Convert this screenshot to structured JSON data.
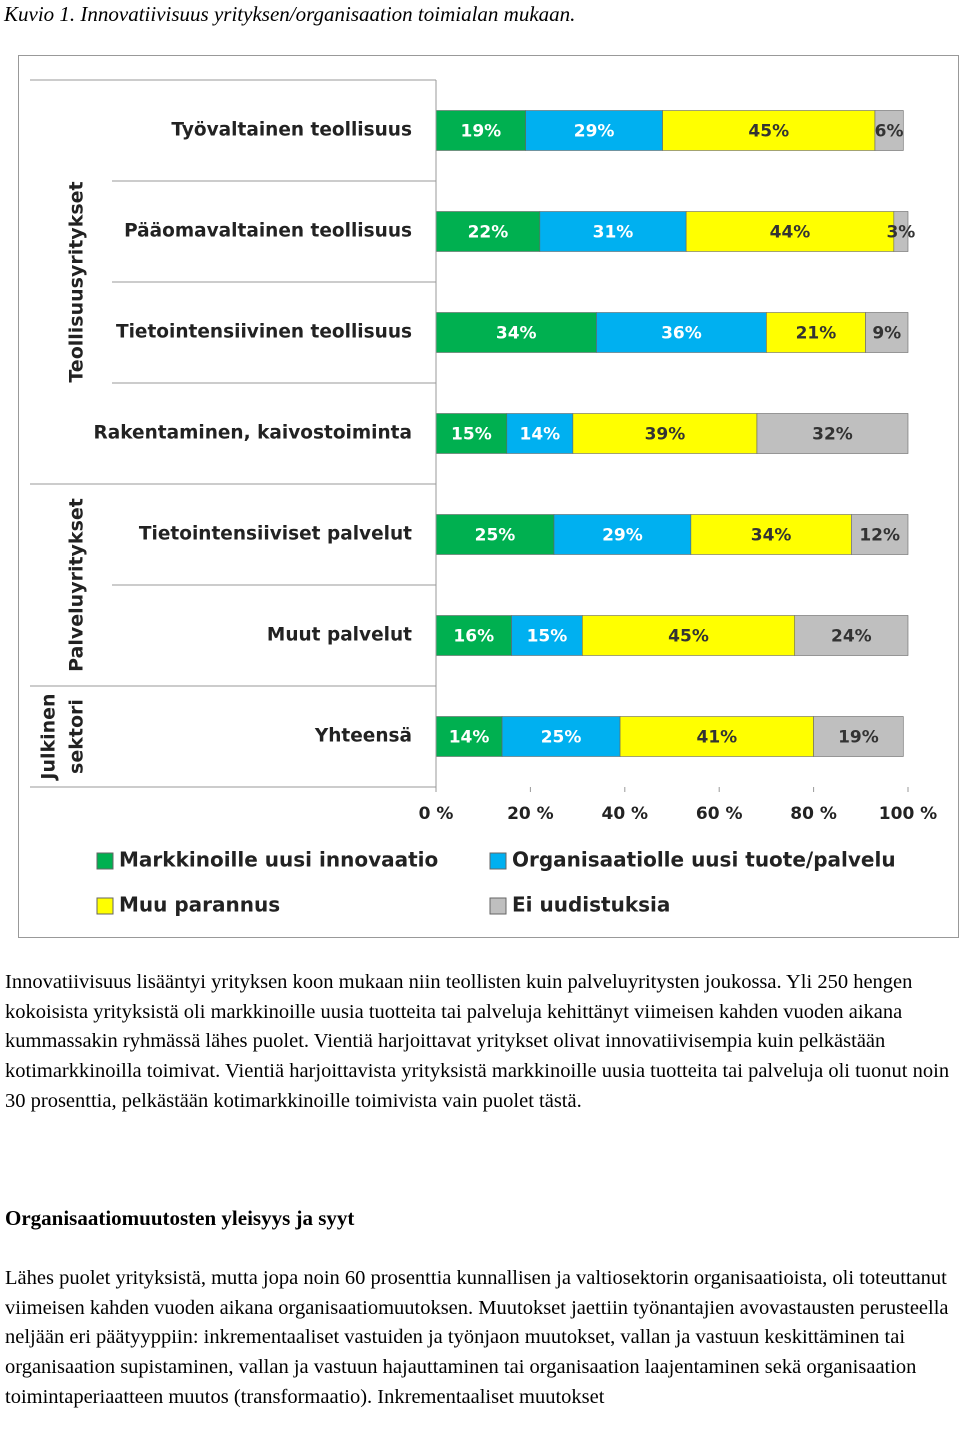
{
  "caption": "Kuvio 1. Innovatiivisuus yrityksen/organisaation toimialan mukaan.",
  "chart_data": {
    "type": "stacked-barh",
    "groups": [
      {
        "label": [
          "Teollisuusyritykset"
        ],
        "categories": [
          "Työvaltainen teollisuus",
          "Pääomavaltainen teollisuus",
          "Tietointensiivinen teollisuus",
          "Rakentaminen, kaivostoiminta"
        ]
      },
      {
        "label": [
          "Palveluyritykset"
        ],
        "categories": [
          "Tietointensiiviset palvelut",
          "Muut palvelut"
        ]
      },
      {
        "label": [
          "Julkinen",
          "sektori"
        ],
        "categories": [
          "Yhteensä"
        ]
      }
    ],
    "series": [
      {
        "name": "Markkinoille uusi innovaatio",
        "color": "#00b050",
        "values": [
          19,
          22,
          34,
          15,
          25,
          16,
          14
        ],
        "value_labels": [
          "19%",
          "22%",
          "34%",
          "15%",
          "25%",
          "16%",
          "14%"
        ]
      },
      {
        "name": "Organisaatiolle uusi tuote/palvelu",
        "color": "#00b0f0",
        "values": [
          29,
          31,
          36,
          14,
          29,
          15,
          25
        ],
        "value_labels": [
          "29%",
          "31%",
          "36%",
          "14%",
          "29%",
          "15%",
          "25%"
        ]
      },
      {
        "name": "Muu parannus",
        "color": "#ffff00",
        "values": [
          45,
          44,
          21,
          39,
          34,
          45,
          41
        ],
        "value_labels": [
          "45%",
          "44%",
          "21%",
          "39%",
          "34%",
          "45%",
          "41%"
        ]
      },
      {
        "name": "Ei uudistuksia",
        "color": "#bfbfbf",
        "values": [
          6,
          3,
          9,
          32,
          12,
          24,
          19
        ],
        "value_labels": [
          "6%",
          "3%",
          "9%",
          "32%",
          "12%",
          "24%",
          "19%"
        ]
      }
    ],
    "xlim": [
      0,
      100
    ],
    "xticks": [
      {
        "value": 0,
        "label": "0 %"
      },
      {
        "value": 20,
        "label": "20 %"
      },
      {
        "value": 40,
        "label": "40 %"
      },
      {
        "value": 60,
        "label": "60 %"
      },
      {
        "value": 80,
        "label": "80 %"
      },
      {
        "value": 100,
        "label": "100 %"
      }
    ]
  },
  "paragraphs": [
    "Innovatiivisuus lisääntyi yrityksen koon mukaan niin teollisten kuin palveluyritysten joukossa. Yli 250 hengen kokoisista yrityksistä oli markkinoille uusia tuotteita tai palveluja kehittänyt viimeisen kahden vuoden aikana kummassakin ryhmässä lähes puolet. Vientiä harjoittavat yritykset olivat innovatiivisempia kuin pelkästään kotimarkkinoilla toimivat. Vientiä harjoittavista yrityksistä markkinoille uusia tuotteita tai palveluja oli tuonut noin 30 prosenttia, pelkästään kotimarkkinoille toimivista vain puolet tästä."
  ],
  "heading": "Organisaatiomuutosten yleisyys ja syyt",
  "paragraphs2": [
    "Lähes puolet yrityksistä, mutta jopa noin 60 prosenttia kunnallisen ja valtiosektorin organisaatioista, oli toteuttanut viimeisen kahden vuoden aikana organisaatiomuutoksen. Muutokset jaettiin työnantajien avovastausten perusteella neljään eri päätyyppiin: inkrementaaliset vastuiden ja työnjaon muutokset, vallan ja vastuun keskittäminen tai organisaation supistaminen, vallan ja vastuun hajauttaminen tai organisaation laajentaminen sekä organisaation toimintaperiaatteen muutos (transformaatio). Inkrementaaliset muutokset"
  ]
}
